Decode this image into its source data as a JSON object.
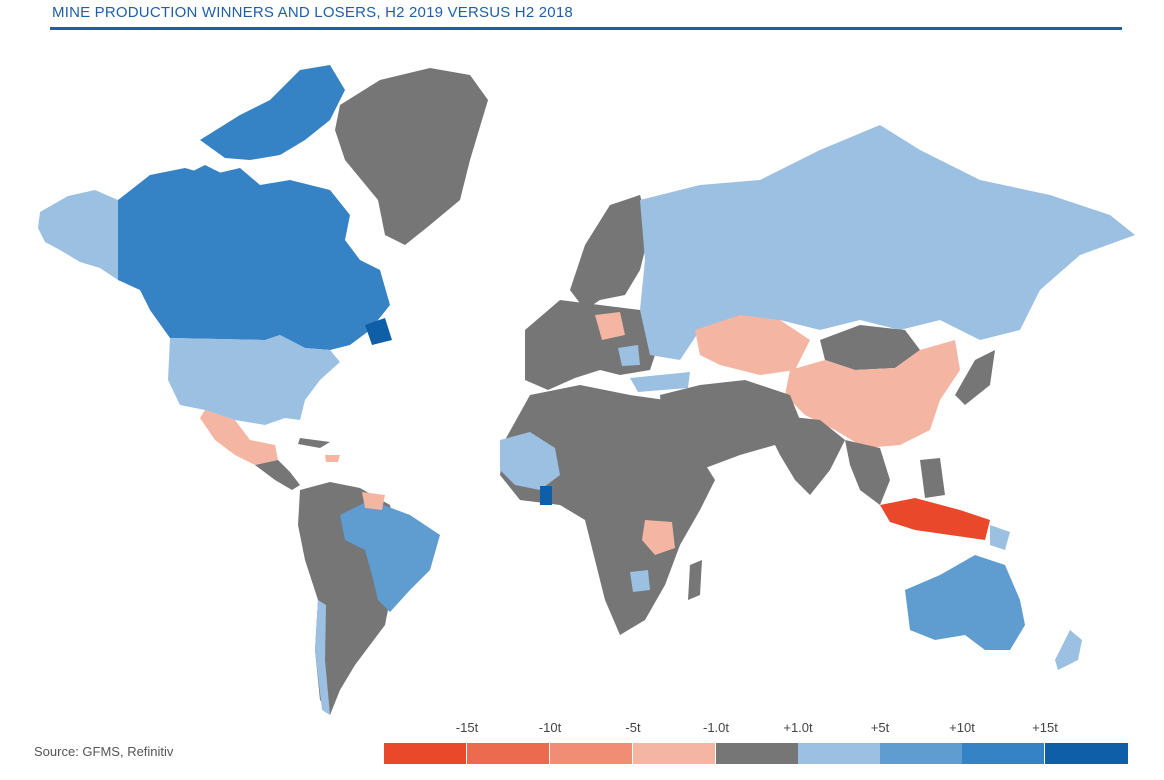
{
  "title": "MINE PRODUCTION WINNERS AND LOSERS, H2 2019 VERSUS H2 2018",
  "source": "Source: GFMS, Refinitiv",
  "colors": {
    "neutral": "#767676",
    "loss_light": "#f4b5a3",
    "loss_strong": "#e9482a",
    "gain_light": "#9bc0e1",
    "gain_mid": "#5f9ccf",
    "gain_strong": "#3582c4",
    "gain_max": "#0e5fa8"
  },
  "legend": {
    "labels": [
      "-15t",
      "-10t",
      "-5t",
      "-1.0t",
      "+1.0t",
      "+5t",
      "+10t",
      "+15t"
    ],
    "swatches": [
      "#e9482a",
      "#ec6a4e",
      "#f08d74",
      "#f4b5a3",
      "#767676",
      "#9bc0e1",
      "#5f9ccf",
      "#3582c4",
      "#0e5fa8"
    ]
  }
}
